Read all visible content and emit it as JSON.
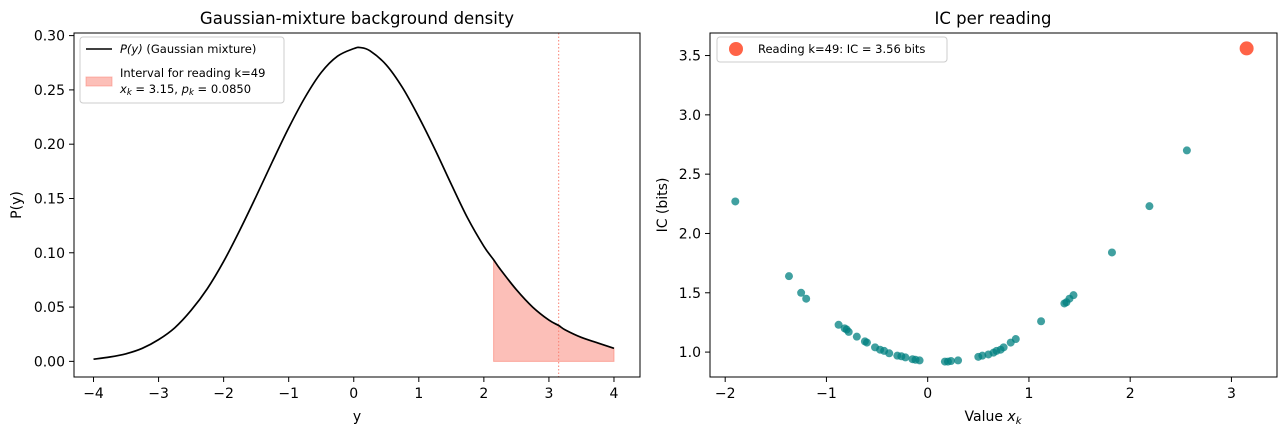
{
  "chart_data": [
    {
      "type": "line",
      "title": "Gaussian-mixture background density",
      "xlabel": "y",
      "ylabel": "P(y)",
      "xlim": [
        -4.3,
        4.4
      ],
      "ylim": [
        -0.0144,
        0.3024
      ],
      "xticks": [
        -4,
        -3,
        -2,
        -1,
        0,
        1,
        2,
        3,
        4
      ],
      "xtick_labels": [
        "−4",
        "−3",
        "−2",
        "−1",
        "0",
        "1",
        "2",
        "3",
        "4"
      ],
      "yticks": [
        0.0,
        0.05,
        0.1,
        0.15,
        0.2,
        0.25,
        0.3
      ],
      "ytick_labels": [
        "0.00",
        "0.05",
        "0.10",
        "0.15",
        "0.20",
        "0.25",
        "0.30"
      ],
      "grid": false,
      "legend_position": "top-left",
      "colors": {
        "curve": "#000000",
        "interval_fill": "#fa8072",
        "vline": "#fa8072"
      },
      "series": [
        {
          "name": "P(y) (Gaussian mixture)",
          "legend_label": {
            "italic": "P(y)",
            "rest": " (Gaussian mixture)"
          },
          "x": [
            -4.0,
            -3.75,
            -3.5,
            -3.25,
            -3.0,
            -2.75,
            -2.5,
            -2.25,
            -2.0,
            -1.75,
            -1.5,
            -1.25,
            -1.0,
            -0.75,
            -0.5,
            -0.25,
            0.0,
            0.1,
            0.25,
            0.5,
            0.75,
            1.0,
            1.25,
            1.5,
            1.75,
            2.0,
            2.15,
            2.25,
            2.5,
            2.75,
            3.0,
            3.15,
            3.25,
            3.5,
            3.75,
            4.0
          ],
          "y": [
            0.002,
            0.004,
            0.007,
            0.012,
            0.02,
            0.031,
            0.047,
            0.067,
            0.092,
            0.121,
            0.152,
            0.184,
            0.215,
            0.243,
            0.266,
            0.281,
            0.288,
            0.289,
            0.286,
            0.273,
            0.252,
            0.225,
            0.195,
            0.163,
            0.132,
            0.106,
            0.0936,
            0.085,
            0.066,
            0.05,
            0.038,
            0.033,
            0.029,
            0.022,
            0.017,
            0.012
          ]
        }
      ],
      "interval": {
        "x_start": 2.15,
        "x_end": 4.0,
        "legend_line1": "Interval for reading k=49",
        "legend_line2_x": "x",
        "legend_line2_sub_k": "k",
        "legend_line2_mid": " = 3.15, ",
        "legend_line2_p": "p",
        "legend_line2_tail": " = 0.0850"
      },
      "vline_x": 3.15
    },
    {
      "type": "scatter",
      "title": "IC per reading",
      "xlabel": "Value ",
      "xlabel_math": "x",
      "xlabel_sub": "k",
      "ylabel": "IC (bits)",
      "xlim": [
        -2.15,
        3.45
      ],
      "ylim": [
        0.79,
        3.69
      ],
      "xticks": [
        -2,
        -1,
        0,
        1,
        2,
        3
      ],
      "xtick_labels": [
        "−2",
        "−1",
        "0",
        "1",
        "2",
        "3"
      ],
      "yticks": [
        1.0,
        1.5,
        2.0,
        2.5,
        3.0,
        3.5
      ],
      "ytick_labels": [
        "1.0",
        "1.5",
        "2.0",
        "2.5",
        "3.0",
        "3.5"
      ],
      "grid": false,
      "legend_position": "top-left",
      "colors": {
        "points": "#008080",
        "highlight": "#ff6347"
      },
      "points": [
        [
          -1.9,
          2.27
        ],
        [
          -1.37,
          1.64
        ],
        [
          -1.25,
          1.5
        ],
        [
          -1.2,
          1.45
        ],
        [
          -0.88,
          1.23
        ],
        [
          -0.82,
          1.2
        ],
        [
          -0.8,
          1.19
        ],
        [
          -0.78,
          1.17
        ],
        [
          -0.7,
          1.13
        ],
        [
          -0.62,
          1.09
        ],
        [
          -0.6,
          1.08
        ],
        [
          -0.52,
          1.04
        ],
        [
          -0.47,
          1.02
        ],
        [
          -0.43,
          1.01
        ],
        [
          -0.38,
          0.99
        ],
        [
          -0.3,
          0.97
        ],
        [
          -0.26,
          0.965
        ],
        [
          -0.22,
          0.955
        ],
        [
          -0.15,
          0.94
        ],
        [
          -0.12,
          0.935
        ],
        [
          -0.08,
          0.93
        ],
        [
          0.17,
          0.92
        ],
        [
          0.2,
          0.92
        ],
        [
          0.23,
          0.925
        ],
        [
          0.3,
          0.93
        ],
        [
          0.5,
          0.96
        ],
        [
          0.54,
          0.97
        ],
        [
          0.6,
          0.98
        ],
        [
          0.65,
          0.995
        ],
        [
          0.68,
          1.01
        ],
        [
          0.72,
          1.02
        ],
        [
          0.75,
          1.04
        ],
        [
          0.82,
          1.08
        ],
        [
          0.87,
          1.11
        ],
        [
          1.12,
          1.26
        ],
        [
          1.35,
          1.41
        ],
        [
          1.37,
          1.42
        ],
        [
          1.4,
          1.45
        ],
        [
          1.44,
          1.48
        ],
        [
          1.82,
          1.84
        ],
        [
          2.19,
          2.23
        ],
        [
          2.56,
          2.7
        ]
      ],
      "highlight": {
        "x": 3.15,
        "y": 3.56,
        "legend_label": "Reading k=49: IC = 3.56 bits"
      }
    }
  ]
}
